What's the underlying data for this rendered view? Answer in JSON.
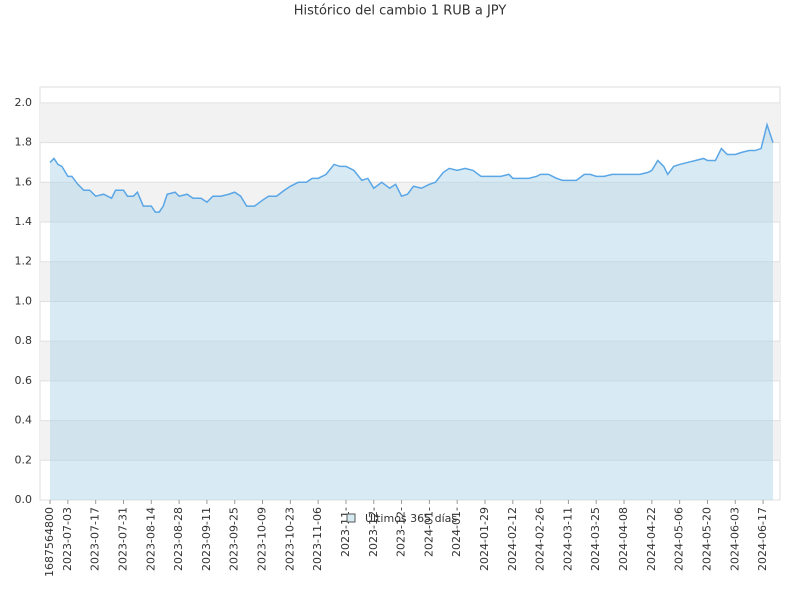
{
  "chart_data": {
    "type": "line",
    "title": "Histórico del cambio 1 RUB a JPY",
    "x": [
      "2023-06-24",
      "2023-06-26",
      "2023-06-28",
      "2023-06-30",
      "2023-07-03",
      "2023-07-05",
      "2023-07-08",
      "2023-07-11",
      "2023-07-14",
      "2023-07-17",
      "2023-07-21",
      "2023-07-25",
      "2023-07-27",
      "2023-07-31",
      "2023-08-02",
      "2023-08-05",
      "2023-08-07",
      "2023-08-10",
      "2023-08-14",
      "2023-08-16",
      "2023-08-18",
      "2023-08-20",
      "2023-08-22",
      "2023-08-26",
      "2023-08-28",
      "2023-09-01",
      "2023-09-04",
      "2023-09-08",
      "2023-09-11",
      "2023-09-14",
      "2023-09-18",
      "2023-09-22",
      "2023-09-25",
      "2023-09-28",
      "2023-10-01",
      "2023-10-05",
      "2023-10-09",
      "2023-10-12",
      "2023-10-16",
      "2023-10-20",
      "2023-10-23",
      "2023-10-27",
      "2023-10-31",
      "2023-11-03",
      "2023-11-06",
      "2023-11-10",
      "2023-11-14",
      "2023-11-17",
      "2023-11-20",
      "2023-11-24",
      "2023-11-28",
      "2023-12-01",
      "2023-12-04",
      "2023-12-08",
      "2023-12-12",
      "2023-12-15",
      "2023-12-18",
      "2023-12-21",
      "2023-12-24",
      "2023-12-28",
      "2024-01-01",
      "2024-01-04",
      "2024-01-08",
      "2024-01-11",
      "2024-01-15",
      "2024-01-19",
      "2024-01-23",
      "2024-01-27",
      "2024-01-29",
      "2024-02-02",
      "2024-02-06",
      "2024-02-10",
      "2024-02-12",
      "2024-02-16",
      "2024-02-20",
      "2024-02-24",
      "2024-02-26",
      "2024-03-01",
      "2024-03-05",
      "2024-03-08",
      "2024-03-11",
      "2024-03-15",
      "2024-03-19",
      "2024-03-22",
      "2024-03-25",
      "2024-03-29",
      "2024-04-02",
      "2024-04-05",
      "2024-04-08",
      "2024-04-12",
      "2024-04-16",
      "2024-04-20",
      "2024-04-22",
      "2024-04-25",
      "2024-04-28",
      "2024-04-30",
      "2024-05-03",
      "2024-05-06",
      "2024-05-10",
      "2024-05-14",
      "2024-05-18",
      "2024-05-20",
      "2024-05-24",
      "2024-05-27",
      "2024-05-30",
      "2024-06-03",
      "2024-06-06",
      "2024-06-10",
      "2024-06-13",
      "2024-06-16",
      "2024-06-19",
      "2024-06-22"
    ],
    "series": [
      {
        "name": "Últimos 365 días",
        "color": "#5aa6e6",
        "values": [
          1.7,
          1.72,
          1.69,
          1.68,
          1.63,
          1.63,
          1.59,
          1.56,
          1.56,
          1.53,
          1.54,
          1.52,
          1.56,
          1.56,
          1.53,
          1.53,
          1.55,
          1.48,
          1.48,
          1.45,
          1.45,
          1.48,
          1.54,
          1.55,
          1.53,
          1.54,
          1.52,
          1.52,
          1.5,
          1.53,
          1.53,
          1.54,
          1.55,
          1.53,
          1.48,
          1.48,
          1.51,
          1.53,
          1.53,
          1.56,
          1.58,
          1.6,
          1.6,
          1.62,
          1.62,
          1.64,
          1.69,
          1.68,
          1.68,
          1.66,
          1.61,
          1.62,
          1.57,
          1.6,
          1.57,
          1.59,
          1.53,
          1.54,
          1.58,
          1.57,
          1.59,
          1.6,
          1.65,
          1.67,
          1.66,
          1.67,
          1.66,
          1.63,
          1.63,
          1.63,
          1.63,
          1.64,
          1.62,
          1.62,
          1.62,
          1.63,
          1.64,
          1.64,
          1.62,
          1.61,
          1.61,
          1.61,
          1.64,
          1.64,
          1.63,
          1.63,
          1.64,
          1.64,
          1.64,
          1.64,
          1.64,
          1.65,
          1.66,
          1.71,
          1.68,
          1.64,
          1.68,
          1.69,
          1.7,
          1.71,
          1.72,
          1.71,
          1.71,
          1.77,
          1.74,
          1.74,
          1.75,
          1.76,
          1.76,
          1.77,
          1.89,
          1.8
        ]
      }
    ],
    "xlim": [
      "2023-06-24",
      "2024-06-22"
    ],
    "xticks": [
      {
        "value": "2023-06-24",
        "label": "1687564800"
      },
      "2023-07-03",
      "2023-07-17",
      "2023-07-31",
      "2023-08-14",
      "2023-08-28",
      "2023-09-11",
      "2023-09-25",
      "2023-10-09",
      "2023-10-23",
      "2023-11-06",
      {
        "value": "2023-11-20",
        "label": "2023-11-"
      },
      {
        "value": "2023-12-04",
        "label": "2023-12-"
      },
      {
        "value": "2023-12-18",
        "label": "2023-12-"
      },
      {
        "value": "2024-01-01",
        "label": "2024-01-"
      },
      {
        "value": "2024-01-15",
        "label": "2024-01-"
      },
      "2024-01-29",
      "2024-02-12",
      "2024-02-26",
      "2024-03-11",
      "2024-03-25",
      "2024-04-08",
      "2024-04-22",
      "2024-05-06",
      "2024-05-20",
      "2024-06-03",
      "2024-06-17"
    ],
    "ylim": [
      0,
      2.08
    ],
    "yticks": [
      {
        "value": 0,
        "label": "0.0"
      },
      0.2,
      0.4,
      0.6,
      0.8,
      {
        "value": 1,
        "label": "1.0"
      },
      1.2,
      1.4,
      1.6,
      1.8,
      {
        "value": 2,
        "label": "2.0"
      }
    ],
    "grid": true
  }
}
